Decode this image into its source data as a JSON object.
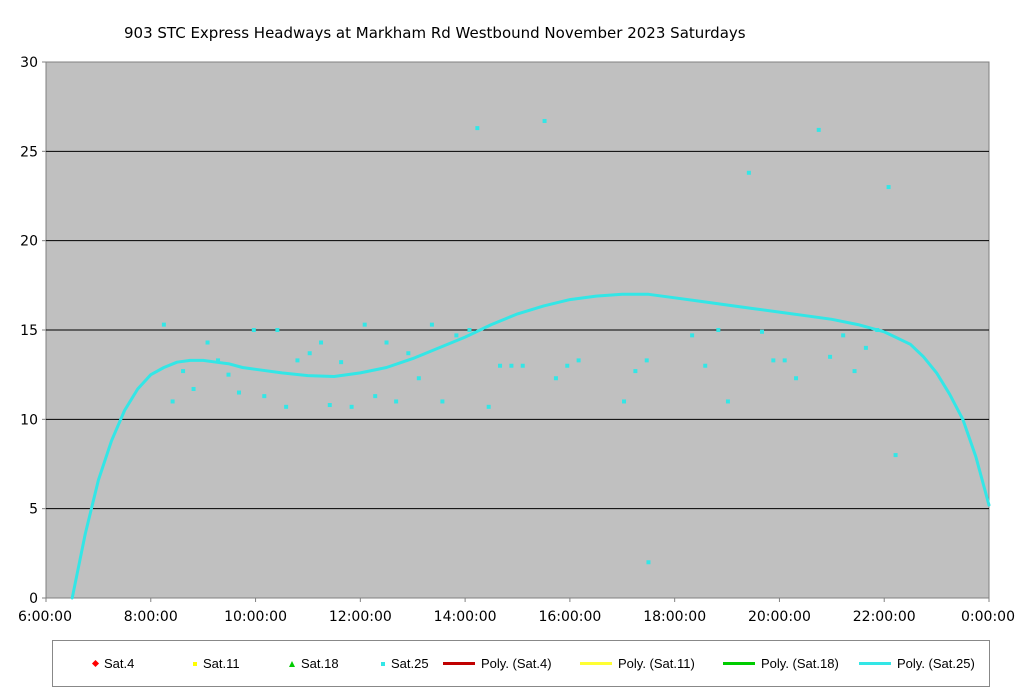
{
  "chart_data": {
    "type": "scatter",
    "title": "903 STC Express Headways at Markham Rd Westbound November 2023  Saturdays",
    "xlabel": "",
    "ylabel": "",
    "xlim": [
      "6:00:00",
      "0:00:00"
    ],
    "ylim": [
      0,
      30
    ],
    "x_ticks": [
      "6:00:00",
      "8:00:00",
      "10:00:00",
      "12:00:00",
      "14:00:00",
      "16:00:00",
      "18:00:00",
      "20:00:00",
      "22:00:00",
      "0:00:00"
    ],
    "y_ticks": [
      "0",
      "5",
      "10",
      "15",
      "20",
      "25",
      "30"
    ],
    "grid": "horizontal",
    "legend_position": "bottom",
    "colors": {
      "plot_bg": "#c0c0c0",
      "sat4": "#ff0000",
      "sat11": "#ffff00",
      "sat18": "#00cc00",
      "sat25": "#33e6e6",
      "poly_sat4": "#c00000",
      "poly_sat11": "#ffff33",
      "poly_sat18": "#00cc00",
      "poly_sat25": "#33e6e6"
    },
    "legend": [
      {
        "label": "Sat.4",
        "kind": "marker",
        "shape": "diamond",
        "color": "#ff0000"
      },
      {
        "label": "Sat.11",
        "kind": "marker",
        "shape": "square",
        "color": "#ffff00"
      },
      {
        "label": "Sat.18",
        "kind": "marker",
        "shape": "triangle",
        "color": "#00cc00"
      },
      {
        "label": "Sat.25",
        "kind": "marker",
        "shape": "circle",
        "color": "#33e6e6"
      },
      {
        "label": "Poly. (Sat.4)",
        "kind": "line",
        "color": "#c00000"
      },
      {
        "label": "Poly. (Sat.11)",
        "kind": "line",
        "color": "#ffff33"
      },
      {
        "label": "Poly. (Sat.18)",
        "kind": "line",
        "color": "#00cc00"
      },
      {
        "label": "Poly. (Sat.25)",
        "kind": "line",
        "color": "#33e6e6"
      }
    ],
    "series": [
      {
        "name": "Sat.25",
        "type": "scatter",
        "color": "#33e6e6",
        "points": [
          [
            "8:15",
            15.3
          ],
          [
            "8:25",
            11.0
          ],
          [
            "8:37",
            12.7
          ],
          [
            "8:49",
            11.7
          ],
          [
            "9:05",
            14.3
          ],
          [
            "9:17",
            13.3
          ],
          [
            "9:29",
            12.5
          ],
          [
            "9:41",
            11.5
          ],
          [
            "9:58",
            15.0
          ],
          [
            "10:10",
            11.3
          ],
          [
            "10:25",
            15.0
          ],
          [
            "10:35",
            10.7
          ],
          [
            "10:48",
            13.3
          ],
          [
            "11:02",
            13.7
          ],
          [
            "11:15",
            14.3
          ],
          [
            "11:25",
            10.8
          ],
          [
            "11:38",
            13.2
          ],
          [
            "11:50",
            10.7
          ],
          [
            "12:05",
            15.3
          ],
          [
            "12:17",
            11.3
          ],
          [
            "12:30",
            14.3
          ],
          [
            "12:41",
            11.0
          ],
          [
            "12:55",
            13.7
          ],
          [
            "13:07",
            12.3
          ],
          [
            "13:22",
            15.3
          ],
          [
            "13:34",
            11.0
          ],
          [
            "13:50",
            14.7
          ],
          [
            "14:05",
            15.0
          ],
          [
            "14:14",
            26.3
          ],
          [
            "14:27",
            10.7
          ],
          [
            "14:40",
            13.0
          ],
          [
            "14:53",
            13.0
          ],
          [
            "15:06",
            13.0
          ],
          [
            "15:31",
            26.7
          ],
          [
            "15:44",
            12.3
          ],
          [
            "15:57",
            13.0
          ],
          [
            "16:10",
            13.3
          ],
          [
            "17:02",
            11.0
          ],
          [
            "17:15",
            12.7
          ],
          [
            "17:28",
            13.3
          ],
          [
            "17:30",
            2.0
          ],
          [
            "18:20",
            14.7
          ],
          [
            "18:35",
            13.0
          ],
          [
            "18:50",
            15.0
          ],
          [
            "19:01",
            11.0
          ],
          [
            "19:25",
            23.8
          ],
          [
            "19:40",
            14.9
          ],
          [
            "19:53",
            13.3
          ],
          [
            "20:06",
            13.3
          ],
          [
            "20:19",
            12.3
          ],
          [
            "20:45",
            26.2
          ],
          [
            "20:58",
            13.5
          ],
          [
            "21:13",
            14.7
          ],
          [
            "21:26",
            12.7
          ],
          [
            "21:39",
            14.0
          ],
          [
            "21:52",
            15.0
          ],
          [
            "22:05",
            23.0
          ],
          [
            "22:13",
            8.0
          ]
        ]
      },
      {
        "name": "Poly. (Sat.25)",
        "type": "line",
        "color": "#33e6e6",
        "points": [
          [
            "6:30",
            0.0
          ],
          [
            "6:45",
            3.6
          ],
          [
            "7:00",
            6.6
          ],
          [
            "7:15",
            8.8
          ],
          [
            "7:30",
            10.5
          ],
          [
            "7:45",
            11.7
          ],
          [
            "8:00",
            12.5
          ],
          [
            "8:15",
            12.9
          ],
          [
            "8:30",
            13.2
          ],
          [
            "8:45",
            13.3
          ],
          [
            "9:00",
            13.3
          ],
          [
            "9:15",
            13.2
          ],
          [
            "9:30",
            13.1
          ],
          [
            "9:45",
            12.9
          ],
          [
            "10:00",
            12.8
          ],
          [
            "10:30",
            12.6
          ],
          [
            "11:00",
            12.45
          ],
          [
            "11:30",
            12.4
          ],
          [
            "12:00",
            12.6
          ],
          [
            "12:30",
            12.9
          ],
          [
            "13:00",
            13.4
          ],
          [
            "13:30",
            14.0
          ],
          [
            "14:00",
            14.6
          ],
          [
            "14:30",
            15.3
          ],
          [
            "15:00",
            15.9
          ],
          [
            "15:30",
            16.35
          ],
          [
            "16:00",
            16.7
          ],
          [
            "16:30",
            16.9
          ],
          [
            "17:00",
            17.0
          ],
          [
            "17:30",
            17.0
          ],
          [
            "18:00",
            16.8
          ],
          [
            "18:30",
            16.6
          ],
          [
            "19:00",
            16.4
          ],
          [
            "19:30",
            16.2
          ],
          [
            "20:00",
            16.0
          ],
          [
            "20:30",
            15.8
          ],
          [
            "21:00",
            15.6
          ],
          [
            "21:30",
            15.3
          ],
          [
            "22:00",
            14.9
          ],
          [
            "22:30",
            14.2
          ],
          [
            "22:45",
            13.5
          ],
          [
            "23:00",
            12.6
          ],
          [
            "23:15",
            11.4
          ],
          [
            "23:30",
            10.0
          ],
          [
            "23:45",
            7.9
          ],
          [
            "24:00",
            5.2
          ]
        ]
      }
    ]
  }
}
